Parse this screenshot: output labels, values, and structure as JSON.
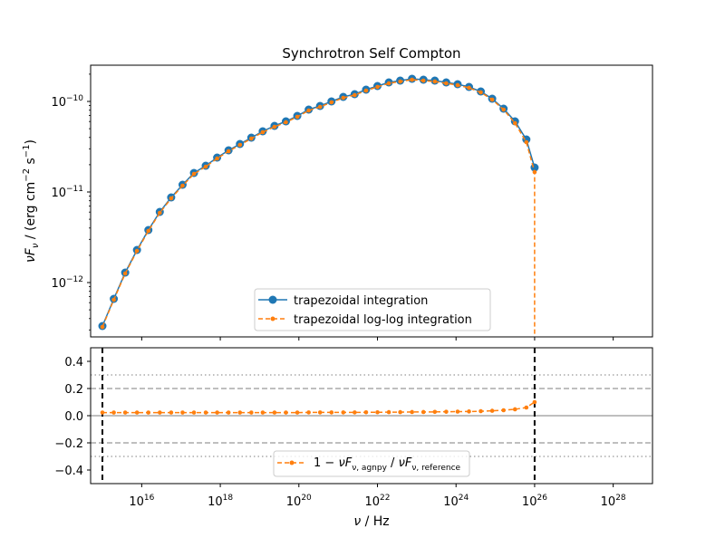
{
  "chart_data": [
    {
      "type": "line",
      "title": "Synchrotron Self Compton",
      "ylabel": "νF_ν / (erg cm⁻² s⁻¹)",
      "y_scale": "log",
      "x_scale": "log",
      "xlim_log10": [
        14.7,
        29.0
      ],
      "ylim_log10": [
        -12.6,
        -9.6
      ],
      "yticks": [
        {
          "exp": -10,
          "label": "10",
          "sup": "−10"
        },
        {
          "exp": -11,
          "label": "10",
          "sup": "−11"
        },
        {
          "exp": -12,
          "label": "10",
          "sup": "−12"
        }
      ],
      "legend": {
        "placement": "lower-center",
        "entries": [
          "trapezoidal integration",
          "trapezoidal log-log integration"
        ]
      },
      "colors": {
        "series1": "#1f77b4",
        "series2": "#ff7f0e"
      },
      "series": [
        {
          "name": "trapezoidal integration",
          "x_log10": [
            15.0,
            15.29,
            15.58,
            15.88,
            16.17,
            16.46,
            16.75,
            17.04,
            17.33,
            17.63,
            17.92,
            18.21,
            18.5,
            18.79,
            19.08,
            19.38,
            19.67,
            19.96,
            20.25,
            20.54,
            20.83,
            21.13,
            21.42,
            21.71,
            22.0,
            22.29,
            22.58,
            22.88,
            23.17,
            23.46,
            23.75,
            24.04,
            24.33,
            24.63,
            24.92,
            25.21,
            25.5,
            25.79,
            26.0
          ],
          "y_log10": [
            -12.48,
            -12.18,
            -11.89,
            -11.64,
            -11.42,
            -11.22,
            -11.06,
            -10.92,
            -10.79,
            -10.71,
            -10.62,
            -10.54,
            -10.47,
            -10.4,
            -10.33,
            -10.27,
            -10.22,
            -10.16,
            -10.09,
            -10.05,
            -10.0,
            -9.95,
            -9.92,
            -9.87,
            -9.83,
            -9.79,
            -9.77,
            -9.75,
            -9.76,
            -9.77,
            -9.79,
            -9.81,
            -9.84,
            -9.89,
            -9.97,
            -10.08,
            -10.22,
            -10.42,
            -10.73
          ]
        },
        {
          "name": "trapezoidal log-log integration",
          "x_log10": [
            15.0,
            15.29,
            15.58,
            15.88,
            16.17,
            16.46,
            16.75,
            17.04,
            17.33,
            17.63,
            17.92,
            18.21,
            18.5,
            18.79,
            19.08,
            19.38,
            19.67,
            19.96,
            20.25,
            20.54,
            20.83,
            21.13,
            21.42,
            21.71,
            22.0,
            22.29,
            22.58,
            22.88,
            23.17,
            23.46,
            23.75,
            24.04,
            24.33,
            24.63,
            24.92,
            25.21,
            25.5,
            25.79,
            26.0
          ],
          "y_log10": [
            -12.49,
            -12.19,
            -11.9,
            -11.65,
            -11.43,
            -11.23,
            -11.07,
            -10.93,
            -10.8,
            -10.72,
            -10.63,
            -10.55,
            -10.48,
            -10.41,
            -10.34,
            -10.28,
            -10.23,
            -10.17,
            -10.1,
            -10.06,
            -10.01,
            -9.96,
            -9.93,
            -9.88,
            -9.84,
            -9.8,
            -9.78,
            -9.76,
            -9.77,
            -9.78,
            -9.8,
            -9.82,
            -9.85,
            -9.9,
            -9.98,
            -10.09,
            -10.24,
            -10.45,
            -10.78
          ]
        }
      ]
    },
    {
      "type": "line",
      "xlabel": "ν / Hz",
      "x_scale": "log",
      "xlim_log10": [
        14.7,
        29.0
      ],
      "ylim": [
        -0.5,
        0.5
      ],
      "yticks": [
        {
          "value": 0.4,
          "label": "0.4"
        },
        {
          "value": 0.2,
          "label": "0.2"
        },
        {
          "value": 0.0,
          "label": "0.0"
        },
        {
          "value": -0.2,
          "label": "−0.2"
        },
        {
          "value": -0.4,
          "label": "−0.4"
        }
      ],
      "xticks": [
        {
          "exp": 16,
          "label": "10",
          "sup": "16"
        },
        {
          "exp": 18,
          "label": "10",
          "sup": "18"
        },
        {
          "exp": 20,
          "label": "10",
          "sup": "20"
        },
        {
          "exp": 22,
          "label": "10",
          "sup": "22"
        },
        {
          "exp": 24,
          "label": "10",
          "sup": "24"
        },
        {
          "exp": 26,
          "label": "10",
          "sup": "26"
        },
        {
          "exp": 28,
          "label": "10",
          "sup": "28"
        }
      ],
      "reference_lines": {
        "solid": [
          0.0
        ],
        "dashed": [
          0.2,
          -0.2
        ],
        "dotted": [
          0.3,
          -0.3
        ],
        "vertical_dashed_log10": [
          15.0,
          26.0
        ]
      },
      "legend": {
        "placement": "lower-center",
        "entries": [
          "1 − νF_ν, agnpy / νF_ν, reference"
        ]
      },
      "series": [
        {
          "name": "1 − νF_ν, agnpy / νF_ν, reference",
          "x_log10": [
            15.0,
            15.29,
            15.58,
            15.88,
            16.17,
            16.46,
            16.75,
            17.04,
            17.33,
            17.63,
            17.92,
            18.21,
            18.5,
            18.79,
            19.08,
            19.38,
            19.67,
            19.96,
            20.25,
            20.54,
            20.83,
            21.13,
            21.42,
            21.71,
            22.0,
            22.29,
            22.58,
            22.88,
            23.17,
            23.46,
            23.75,
            24.04,
            24.33,
            24.63,
            24.92,
            25.21,
            25.5,
            25.79,
            26.0
          ],
          "y": [
            0.023,
            0.023,
            0.023,
            0.023,
            0.023,
            0.023,
            0.023,
            0.023,
            0.023,
            0.023,
            0.023,
            0.023,
            0.023,
            0.023,
            0.023,
            0.023,
            0.023,
            0.023,
            0.024,
            0.024,
            0.024,
            0.024,
            0.024,
            0.025,
            0.025,
            0.026,
            0.026,
            0.027,
            0.027,
            0.028,
            0.029,
            0.03,
            0.031,
            0.033,
            0.036,
            0.04,
            0.047,
            0.06,
            0.1
          ]
        }
      ]
    }
  ]
}
